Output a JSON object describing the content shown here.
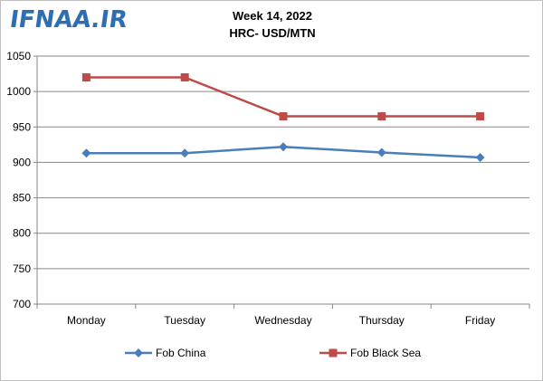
{
  "watermark": {
    "text": "IFNAA.IR",
    "color": "#2e6fb3"
  },
  "header": {
    "line1": "Week 14, 2022",
    "line2": "HRC- USD/MTN"
  },
  "chart_data": {
    "type": "line",
    "title": "Week 14, 2022",
    "subtitle": "HRC- USD/MTN",
    "categories": [
      "Monday",
      "Tuesday",
      "Wednesday",
      "Thursday",
      "Friday"
    ],
    "ylim": [
      700,
      1050
    ],
    "yticks": [
      700,
      750,
      800,
      850,
      900,
      950,
      1000,
      1050
    ],
    "grid": true,
    "legend_position": "bottom",
    "series": [
      {
        "name": "Fob China",
        "values": [
          913,
          913,
          922,
          914,
          907
        ],
        "color": "#4a7ebb",
        "marker": "diamond"
      },
      {
        "name": "Fob Black Sea",
        "values": [
          1020,
          1020,
          965,
          965,
          965
        ],
        "color": "#be4b48",
        "marker": "square"
      }
    ]
  }
}
